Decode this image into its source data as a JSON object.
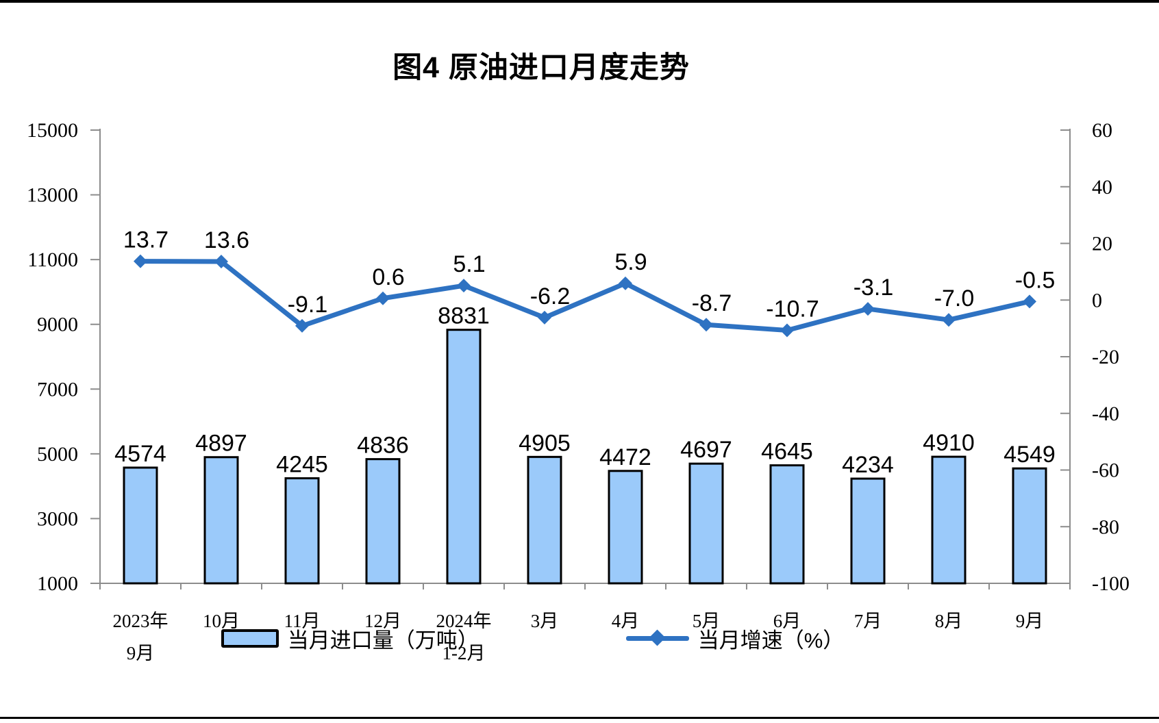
{
  "chart_data": {
    "type": "bar+line",
    "title": "图4 原油进口月度走势",
    "categories": [
      [
        "2023年",
        "9月"
      ],
      [
        "10月"
      ],
      [
        "11月"
      ],
      [
        "12月"
      ],
      [
        "2024年",
        "1-2月"
      ],
      [
        "3月"
      ],
      [
        "4月"
      ],
      [
        "5月"
      ],
      [
        "6月"
      ],
      [
        "7月"
      ],
      [
        "8月"
      ],
      [
        "9月"
      ]
    ],
    "series": [
      {
        "name": "当月进口量（万吨）",
        "type": "bar",
        "axis": "left",
        "values": [
          4574,
          4897,
          4245,
          4836,
          8831,
          4905,
          4472,
          4697,
          4645,
          4234,
          4910,
          4549
        ],
        "labels": [
          "4574",
          "4897",
          "4245",
          "4836",
          "8831",
          "4905",
          "4472",
          "4697",
          "4645",
          "4234",
          "4910",
          "4549"
        ],
        "fill_color": "#9BCAFA",
        "border_color": "#000000"
      },
      {
        "name": "当月增速（%）",
        "type": "line",
        "axis": "right",
        "values": [
          13.7,
          13.6,
          -9.1,
          0.6,
          5.1,
          -6.2,
          5.9,
          -8.7,
          -10.7,
          -3.1,
          -7.0,
          -0.5
        ],
        "labels": [
          "13.7",
          "13.6",
          "-9.1",
          "0.6",
          "5.1",
          "-6.2",
          "5.9",
          "-8.7",
          "-10.7",
          "-3.1",
          "-7.0",
          "-0.5"
        ],
        "color": "#2E72C2",
        "marker": "diamond"
      }
    ],
    "left_axis": {
      "min": 1000,
      "max": 15000,
      "ticks": [
        15000,
        13000,
        11000,
        9000,
        7000,
        5000,
        3000,
        1000
      ]
    },
    "right_axis": {
      "min": -100,
      "max": 60,
      "ticks": [
        60,
        40,
        20,
        0,
        -20,
        -40,
        -60,
        -80,
        -100
      ]
    },
    "grid": false,
    "legend_position": "bottom"
  },
  "colors": {
    "bar_fill": "#9BCAFA",
    "bar_border": "#000000",
    "line": "#2E72C2",
    "axis": "#8C8C8C",
    "text": "#000000",
    "page_border": "#000000"
  }
}
